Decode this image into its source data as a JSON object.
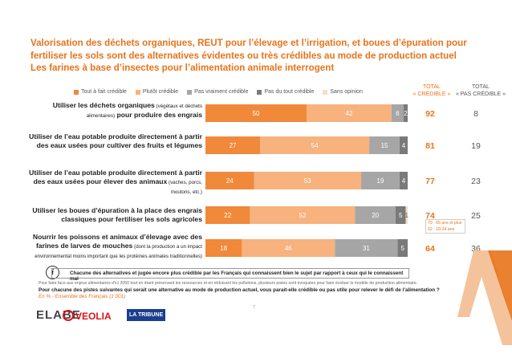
{
  "title_lines": [
    "Valorisation des déchets organiques, REUT pour l’élevage et l’irrigation, et boues d’épuration pour",
    "fertiliser les sols sont des alternatives évidentes ou très crédibles au mode de production actuel",
    "Les farines à base d’insectes pour l’alimentation animale interrogent"
  ],
  "columns": {
    "credible_line1": "TOTAL",
    "credible_line2": "« CRÉDIBLE »",
    "notcredible_line1": "TOTAL",
    "notcredible_line2": "« PAS CRÉDIBLE »"
  },
  "colors": {
    "accent": "#e8731a",
    "tout_a_fait": "#f0893a",
    "plutot": "#f7b27d",
    "pas_vraiment": "#a6a6a6",
    "pas_du_tout": "#7a7a7a",
    "sans_opinion": "#f8dcc4"
  },
  "chart_data": {
    "type": "bar",
    "orientation": "horizontal-stacked",
    "legend": [
      "Tout à fait crédible",
      "Plutôt crédible",
      "Pas vraiment crédible",
      "Pas du tout crédible",
      "Sans opinion"
    ],
    "rows": [
      {
        "label_bold": "Utiliser les déchets organiques",
        "label_small": " (végétaux et déchets alimentaires)",
        "label_bold2": " pour produire des engrais",
        "values": [
          50,
          42,
          6,
          2,
          0
        ],
        "total_credible": 92,
        "total_not_credible": 8
      },
      {
        "label_bold": "Utiliser de l’eau potable produite directement à partir des eaux usées pour cultiver des fruits et légumes",
        "label_small": "",
        "label_bold2": "",
        "values": [
          27,
          54,
          15,
          4,
          0
        ],
        "total_credible": 81,
        "total_not_credible": 19
      },
      {
        "label_bold": "Utiliser de l’eau potable produite directement à partir des eaux usées pour élever des animaux",
        "label_small": " (vaches, porcs, moutons, etc.)",
        "label_bold2": "",
        "values": [
          24,
          53,
          19,
          4,
          0
        ],
        "total_credible": 77,
        "total_not_credible": 23
      },
      {
        "label_bold": "Utiliser les boues d’épuration à la place des engrais classiques pour fertiliser les sols agricoles",
        "label_small": "",
        "label_bold2": "",
        "values": [
          22,
          52,
          20,
          5,
          1
        ],
        "total_credible": 74,
        "total_not_credible": 25
      },
      {
        "label_bold": "Nourrir les poissons et animaux d’élevage avec des farines de larves de mouches",
        "label_small": " (dont la production a un impact environnemental moins important que les protéines animales traditionnelles)",
        "label_bold2": "",
        "values": [
          18,
          46,
          31,
          5,
          0
        ],
        "total_credible": 64,
        "total_not_credible": 36
      }
    ]
  },
  "age_note": {
    "line1": "79 : 65 ans et plus",
    "line2": "62 : 18-24 ans"
  },
  "note": "Chacune des alternatives et jugée encore plus crédible par les Français qui connaissent bien le sujet par rapport à ceux qui le connaissent mal",
  "footnote": "Pour faire face aux enjeux alimentaires d’ici 2050 tout en étant préservant les ressources et en réduisant les pollutions, plusieurs pistes sont évoquées pour faire évoluer le modèle de production alimentaire.",
  "question": "Pour chacune des pistes suivantes qui serait une alternative au mode de production actuel, vous parait-elle crédible ou pas utile pour relever le défi de l’alimentation ?",
  "base": "En % - Ensemble des Français (1 001)",
  "page_number": "7",
  "logos": {
    "elabe": "ELABE",
    "veolia": "VEOLIA",
    "tribune": "LA TRIBUNE"
  }
}
